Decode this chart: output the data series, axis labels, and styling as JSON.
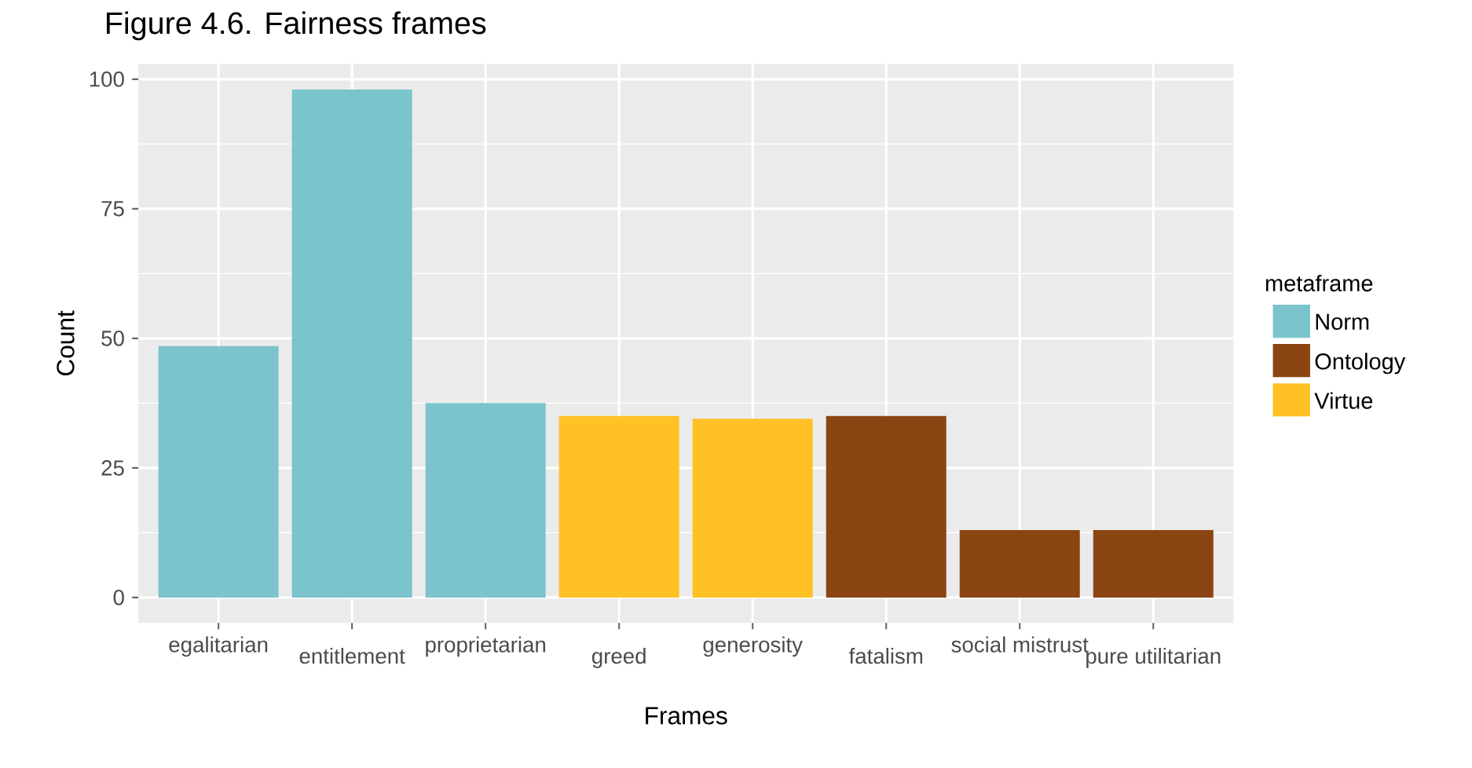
{
  "chart_data": {
    "type": "bar",
    "title": "Figure 4.6. Fairness frames",
    "xlabel": "Frames",
    "ylabel": "Count",
    "legend_title": "metaframe",
    "categories": [
      "egalitarian",
      "entitlement",
      "proprietarian",
      "greed",
      "generosity",
      "fatalism",
      "social mistrust",
      "pure utilitarian"
    ],
    "series": [
      {
        "name": "Norm",
        "color": "#7bc4cc",
        "values": [
          48.5,
          98,
          37.5,
          null,
          null,
          null,
          null,
          null
        ]
      },
      {
        "name": "Ontology",
        "color": "#8b4513",
        "values": [
          null,
          null,
          null,
          null,
          null,
          35,
          13,
          13
        ]
      },
      {
        "name": "Virtue",
        "color": "#ffc125",
        "values": [
          null,
          null,
          null,
          35,
          34.5,
          null,
          null,
          null
        ]
      }
    ],
    "ylim": [
      -4.9,
      102.9
    ],
    "yticks": [
      0,
      25,
      50,
      75,
      100
    ],
    "grid": true,
    "legend": "right"
  }
}
